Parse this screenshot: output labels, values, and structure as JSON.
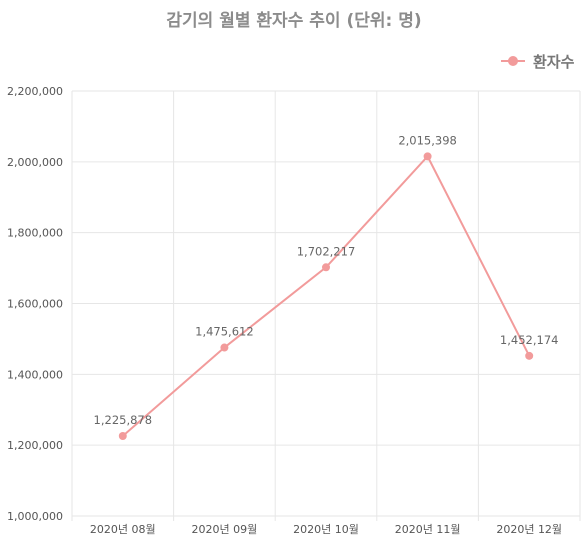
{
  "chart_data": {
    "type": "line",
    "title": "감기의 월별 환자수 추이 (단위: 명)",
    "categories": [
      "2020년 08월",
      "2020년 09월",
      "2020년 10월",
      "2020년 11월",
      "2020년 12월"
    ],
    "series": [
      {
        "name": "환자수",
        "values": [
          1225878,
          1475612,
          1702217,
          2015398,
          1452174
        ]
      }
    ],
    "data_labels": [
      "1,225,878",
      "1,475,612",
      "1,702,217",
      "2,015,398",
      "1,452,174"
    ],
    "ylim": [
      1000000,
      2200000
    ],
    "yticks": [
      1000000,
      1200000,
      1400000,
      1600000,
      1800000,
      2000000,
      2200000
    ],
    "ytick_labels": [
      "1,000,000",
      "1,200,000",
      "1,400,000",
      "1,600,000",
      "1,800,000",
      "2,000,000",
      "2,200,000"
    ],
    "grid": true,
    "legend_position": "top-right",
    "colors": {
      "series": "#f29b9b",
      "grid": "#e6e6e6"
    }
  }
}
